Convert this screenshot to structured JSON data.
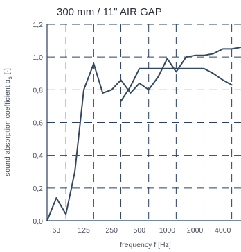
{
  "chart_data": {
    "type": "line",
    "title": "300 mm / 11\" AIR GAP",
    "xlabel": "frequency f [Hz]",
    "ylabel": "sound absorption coefficient α s [-]",
    "ylabel_main": "sound absorption coefficient α",
    "ylabel_sub": "s",
    "ylabel_unit": " [-]",
    "x_scale": "log",
    "x_ticks": [
      "63",
      "125",
      "250",
      "500",
      "1000",
      "2000",
      "4000"
    ],
    "y_ticks": [
      "0,0",
      "0,2",
      "0,4",
      "0,6",
      "0,8",
      "1,0",
      "1,2"
    ],
    "ylim": [
      0,
      1.2
    ],
    "grid": true,
    "series": [
      {
        "x": [
          50,
          63,
          80,
          100,
          125,
          160,
          200,
          250,
          315,
          400,
          500,
          630,
          800,
          1000,
          1250,
          1600,
          2000,
          2500,
          3150,
          4000,
          5000,
          6300
        ],
        "y": [
          0.0,
          0.14,
          0.04,
          0.3,
          0.8,
          0.96,
          0.78,
          0.8,
          0.86,
          0.78,
          0.84,
          0.8,
          0.88,
          0.99,
          0.91,
          1.0,
          1.01,
          1.01,
          1.02,
          1.05,
          1.05,
          1.06
        ]
      },
      {
        "x": [
          315,
          400,
          500,
          630,
          800,
          1000,
          1250,
          1600,
          2000,
          2500,
          3150,
          4000,
          5000
        ],
        "y": [
          0.73,
          0.82,
          0.93,
          0.93,
          0.93,
          0.93,
          0.93,
          0.93,
          0.93,
          0.93,
          0.9,
          0.86,
          0.83
        ]
      }
    ]
  }
}
